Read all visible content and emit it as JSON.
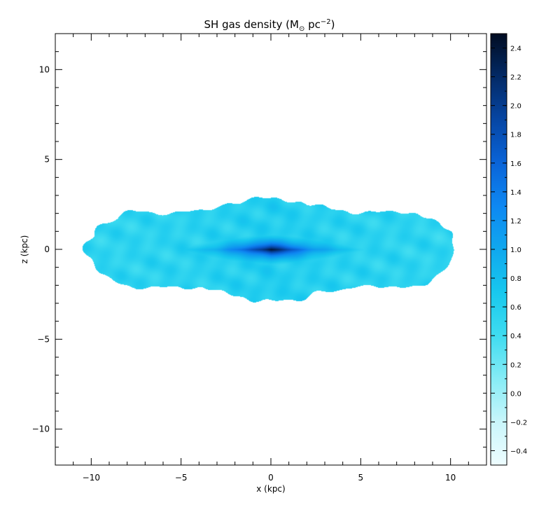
{
  "chart_data": {
    "type": "heatmap",
    "title": "SH gas density (M",
    "title_sub": "⊙",
    "title_mid": " pc",
    "title_sup": "−2",
    "title_end": ")",
    "xlabel": "x (kpc)",
    "ylabel": "z (kpc)",
    "xlim": [
      -12,
      12
    ],
    "ylim": [
      -12,
      12
    ],
    "x_ticks": [
      {
        "value": -10,
        "label": "−10"
      },
      {
        "value": -5,
        "label": "−5"
      },
      {
        "value": 0,
        "label": "0"
      },
      {
        "value": 5,
        "label": "5"
      },
      {
        "value": 10,
        "label": "10"
      }
    ],
    "y_ticks": [
      {
        "value": 10,
        "label": "10"
      },
      {
        "value": 5,
        "label": "5"
      },
      {
        "value": 0,
        "label": "0"
      },
      {
        "value": -5,
        "label": "−5"
      },
      {
        "value": -10,
        "label": "−10"
      }
    ],
    "colorbar": {
      "range": [
        -0.5,
        2.5
      ],
      "ticks": [
        {
          "value": 2.4,
          "label": "2.4"
        },
        {
          "value": 2.2,
          "label": "2.2"
        },
        {
          "value": 2.0,
          "label": "2.0"
        },
        {
          "value": 1.8,
          "label": "1.8"
        },
        {
          "value": 1.6,
          "label": "1.6"
        },
        {
          "value": 1.4,
          "label": "1.4"
        },
        {
          "value": 1.2,
          "label": "1.2"
        },
        {
          "value": 1.0,
          "label": "1.0"
        },
        {
          "value": 0.8,
          "label": "0.8"
        },
        {
          "value": 0.6,
          "label": "0.6"
        },
        {
          "value": 0.4,
          "label": "0.4"
        },
        {
          "value": 0.2,
          "label": "0.2"
        },
        {
          "value": 0.0,
          "label": "0.0"
        },
        {
          "value": -0.2,
          "label": "−0.2"
        },
        {
          "value": -0.4,
          "label": "−0.4"
        }
      ],
      "colors": [
        "#eefdff",
        "#c9f6fb",
        "#86ecf6",
        "#3fdcf0",
        "#18c8ee",
        "#10a8ee",
        "#0e88f2",
        "#0a64d8",
        "#0646a4",
        "#032a66",
        "#010c22"
      ]
    },
    "density_field": {
      "center": [
        0,
        0
      ],
      "disk_extent_x": [
        -10.3,
        10.3
      ],
      "disk_extent_z": [
        -3.2,
        3.1
      ],
      "peak": 2.4,
      "outer_level": 0.5,
      "core_scale_length": 3.5,
      "core_scale_height": 0.6
    }
  }
}
